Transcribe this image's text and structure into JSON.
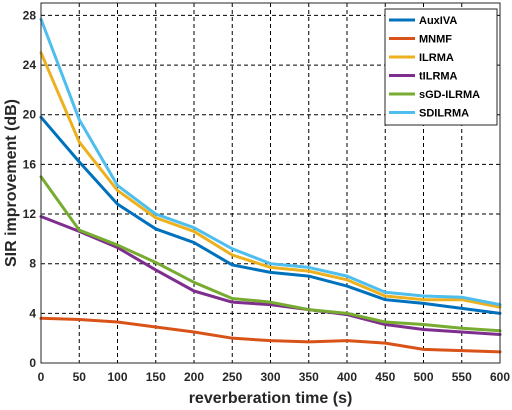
{
  "chart_data": {
    "type": "line",
    "xlabel": "reverberation time (s)",
    "ylabel": "SIR improvement (dB)",
    "xlim": [
      0,
      600
    ],
    "ylim": [
      0,
      29
    ],
    "x_ticks": [
      0,
      50,
      100,
      150,
      200,
      250,
      300,
      350,
      400,
      450,
      500,
      550,
      600
    ],
    "y_ticks": [
      0,
      4,
      8,
      12,
      16,
      20,
      24,
      28
    ],
    "grid": true,
    "legend_position": "top-right",
    "x": [
      0,
      50,
      100,
      150,
      200,
      250,
      300,
      350,
      400,
      450,
      500,
      550,
      600
    ],
    "series": [
      {
        "name": "AuxIVA",
        "color": "#0072BD",
        "values": [
          19.8,
          16.2,
          12.8,
          10.8,
          9.7,
          7.9,
          7.3,
          7.0,
          6.2,
          5.1,
          4.8,
          4.4,
          4.0
        ]
      },
      {
        "name": "MNMF",
        "color": "#D95319",
        "values": [
          3.6,
          3.5,
          3.3,
          2.9,
          2.5,
          2.0,
          1.8,
          1.7,
          1.8,
          1.6,
          1.1,
          1.0,
          0.9
        ]
      },
      {
        "name": "ILRMA",
        "color": "#EDB120",
        "values": [
          25.0,
          17.8,
          13.9,
          11.7,
          10.6,
          8.7,
          7.7,
          7.4,
          6.7,
          5.4,
          5.1,
          5.1,
          4.5
        ]
      },
      {
        "name": "tILRMA",
        "color": "#7E2F8E",
        "values": [
          11.8,
          10.6,
          9.3,
          7.5,
          5.8,
          4.9,
          4.7,
          4.3,
          3.9,
          3.1,
          2.7,
          2.5,
          2.3
        ]
      },
      {
        "name": "sGD-ILRMA",
        "color": "#77AC30",
        "values": [
          15.0,
          10.7,
          9.5,
          8.1,
          6.5,
          5.2,
          4.9,
          4.3,
          4.0,
          3.3,
          3.1,
          2.8,
          2.6
        ]
      },
      {
        "name": "SDILRMA",
        "color": "#4DBEEE",
        "values": [
          27.7,
          19.6,
          14.3,
          12.0,
          10.9,
          9.2,
          8.0,
          7.7,
          7.0,
          5.7,
          5.4,
          5.3,
          4.7
        ]
      }
    ]
  }
}
